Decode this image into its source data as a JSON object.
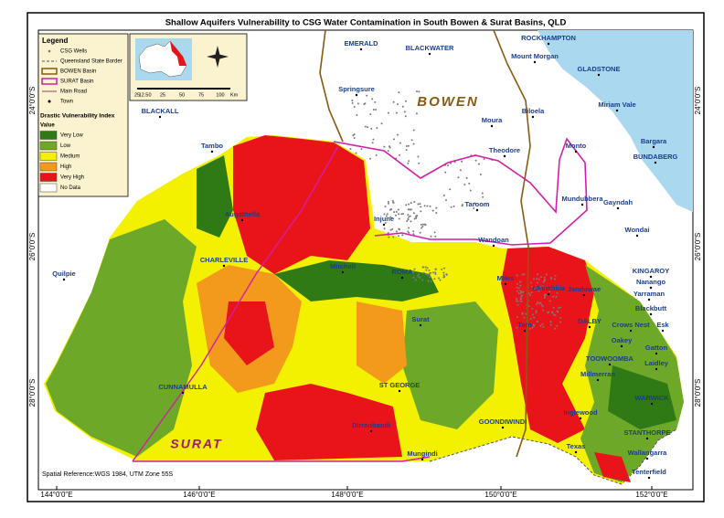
{
  "title": "Shallow Aquifers Vulnerability to CSG Water Contamination in South Bowen & Surat Basins, QLD",
  "legend": {
    "title": "Legend",
    "items": [
      "CSG Wells",
      "Queensland State Border",
      "BOWEN Basin",
      "SURAT Basin",
      "Main Road",
      "Town"
    ],
    "index_title": "Drastic Vulnerability Index",
    "value_label": "Value",
    "classes": [
      {
        "name": "Very Low",
        "color": "#2f7a14"
      },
      {
        "name": "Low",
        "color": "#6ea829"
      },
      {
        "name": "Medium",
        "color": "#f3f000"
      },
      {
        "name": "High",
        "color": "#f39a1d"
      },
      {
        "name": "Very High",
        "color": "#e8141a"
      },
      {
        "name": "No Data",
        "color": "#ffffff"
      }
    ]
  },
  "scale_bar": {
    "ticks": [
      "25",
      "12.5",
      "0",
      "25",
      "50",
      "75",
      "100"
    ],
    "unit": "Km"
  },
  "basins": {
    "bowen": "BOWEN",
    "surat": "SURAT"
  },
  "towns": [
    "EMERALD",
    "BLACKWATER",
    "ROCKHAMPTON",
    "Mount Morgan",
    "GLADSTONE",
    "Springsure",
    "BLACKALL",
    "Moura",
    "Biloela",
    "Miriam Vale",
    "Theodore",
    "Monto",
    "Bargara",
    "BUNDABERG",
    "Tambo",
    "Augathella",
    "Injune",
    "Taroom",
    "Mundubbera",
    "Gayndah",
    "Wandoan",
    "Wondai",
    "CHARLEVILLE",
    "Mitchell",
    "ROMA",
    "Miles",
    "Chinchilla",
    "Jandowae",
    "KINGAROY",
    "Nanango",
    "Yarraman",
    "Quilpie",
    "Blackbutt",
    "Surat",
    "Tara",
    "DALBY",
    "Crows Nest",
    "Esk",
    "Oakey",
    "Gatton",
    "TOOWOOMBA",
    "Laidley",
    "CUNNAMULLA",
    "ST GEORGE",
    "Millmerran",
    "WARWICK",
    "Inglewood",
    "Dirranbandi",
    "GOONDIWINDI",
    "STANTHORPE",
    "Texas",
    "Wallangarra",
    "Mungindi",
    "Tenterfield"
  ],
  "graticule": {
    "longitudes": [
      "144°0'0\"E",
      "146°0'0\"E",
      "148°0'0\"E",
      "150°0'0\"E",
      "152°0'0\"E"
    ],
    "latitudes": [
      "24°0'0\"S",
      "26°0'0\"S",
      "28°0'0\"S"
    ]
  },
  "footer": "Spatial Reference:WGS 1984, UTM Zone 55S"
}
